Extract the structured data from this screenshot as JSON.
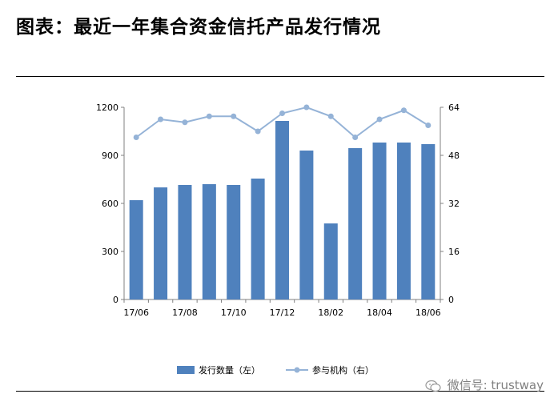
{
  "title": "图表：最近一年集合资金信托产品发行情况",
  "watermark": "微信号: trustway",
  "chart_data": {
    "type": "bar+line",
    "categories": [
      "17/06",
      "17/07",
      "17/08",
      "17/09",
      "17/10",
      "17/11",
      "17/12",
      "18/01",
      "18/02",
      "18/03",
      "18/04",
      "18/05",
      "18/06"
    ],
    "x_tick_labels": [
      "17/06",
      "17/08",
      "17/10",
      "17/12",
      "18/02",
      "18/04",
      "18/06"
    ],
    "series": [
      {
        "name": "发行数量（左）",
        "type": "bar",
        "axis": "left",
        "color": "#4f81bd",
        "values": [
          620,
          700,
          715,
          720,
          715,
          755,
          1115,
          930,
          475,
          945,
          980,
          980,
          970
        ]
      },
      {
        "name": "参与机构（右）",
        "type": "line",
        "axis": "right",
        "color": "#95b3d7",
        "values": [
          54,
          60,
          59,
          61,
          61,
          56,
          62,
          64,
          61,
          54,
          60,
          63,
          58
        ]
      }
    ],
    "y_left": {
      "min": 0,
      "max": 1200,
      "ticks": [
        0,
        300,
        600,
        900,
        1200
      ]
    },
    "y_right": {
      "min": 0,
      "max": 64,
      "ticks": [
        0,
        16,
        32,
        48,
        64
      ]
    },
    "legend_position": "bottom",
    "grid": false
  }
}
